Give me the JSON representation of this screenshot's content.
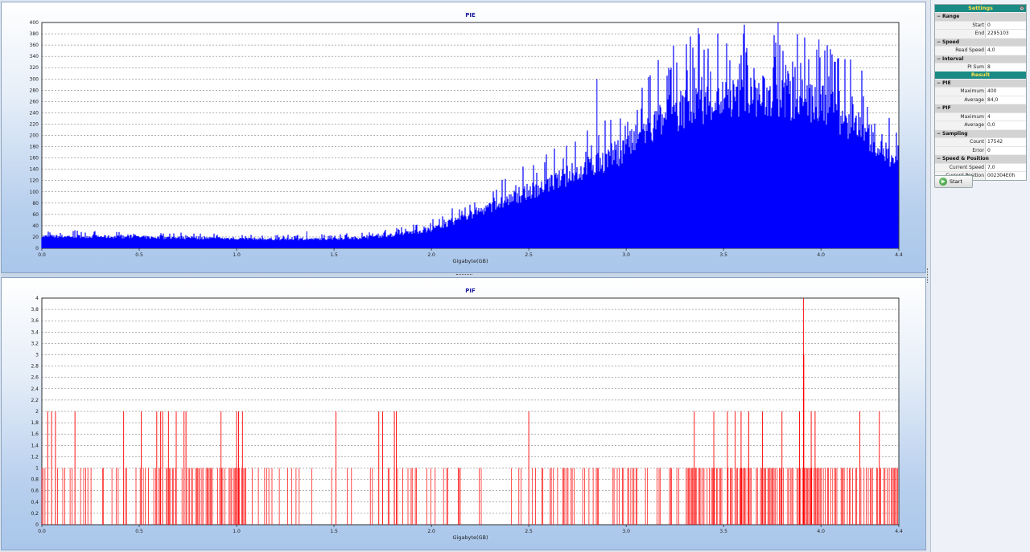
{
  "colors": {
    "pie": "#0000ff",
    "pif": "#ff0000",
    "header": "#1a8a84",
    "header_text": "#ffe24a"
  },
  "settings": {
    "header": "Settings",
    "range": {
      "label": "Range",
      "start_label": "Start",
      "start_value": "0",
      "end_label": "End",
      "end_value": "2295103"
    },
    "speed": {
      "label": "Speed",
      "read_speed_label": "Read Speed",
      "read_speed_value": "4,0"
    },
    "interval": {
      "label": "Interval",
      "pi_sum_label": "PI Sum",
      "pi_sum_value": "8"
    }
  },
  "result": {
    "header": "Result",
    "pie": {
      "label": "PIE",
      "max_label": "Maximum",
      "max_value": "400",
      "avg_label": "Average",
      "avg_value": "84,0"
    },
    "pif": {
      "label": "PIF",
      "max_label": "Maximum",
      "max_value": "4",
      "avg_label": "Average",
      "avg_value": "0,0"
    },
    "sampling": {
      "label": "Sampling",
      "count_label": "Count",
      "count_value": "17542",
      "error_label": "Error",
      "error_value": "0"
    },
    "speed_position": {
      "label": "Speed & Position",
      "current_speed_label": "Current Speed",
      "current_speed_value": "7,0",
      "current_position_label": "Current Position",
      "current_position_value": "002304E0h"
    }
  },
  "start_button": {
    "label": "Start"
  },
  "chart_data": [
    {
      "type": "bar",
      "title": "PIE",
      "xlabel": "Gigabyte(GB)",
      "ylabel": "",
      "xlim": [
        0,
        4.4
      ],
      "ylim": [
        0,
        400
      ],
      "grid": true,
      "x_ticks": [
        "0.0",
        "0.5",
        "1.0",
        "1.5",
        "2.0",
        "2.5",
        "3.0",
        "3.5",
        "4.0",
        "4.4"
      ],
      "y_ticks": [
        "0",
        "20",
        "40",
        "60",
        "80",
        "100",
        "120",
        "140",
        "160",
        "180",
        "200",
        "220",
        "240",
        "260",
        "280",
        "300",
        "320",
        "340",
        "360",
        "380",
        "400"
      ],
      "x": [
        0.0,
        0.2,
        0.4,
        0.6,
        0.8,
        1.0,
        1.2,
        1.4,
        1.6,
        1.8,
        2.0,
        2.1,
        2.2,
        2.3,
        2.4,
        2.5,
        2.6,
        2.7,
        2.8,
        2.9,
        3.0,
        3.1,
        3.2,
        3.3,
        3.4,
        3.5,
        3.6,
        3.7,
        3.8,
        3.9,
        4.0,
        4.1,
        4.2,
        4.3,
        4.4
      ],
      "values": [
        22,
        22,
        21,
        20,
        19,
        18,
        17,
        17,
        19,
        24,
        35,
        48,
        62,
        75,
        90,
        105,
        118,
        132,
        148,
        165,
        185,
        215,
        240,
        258,
        268,
        275,
        278,
        280,
        276,
        270,
        265,
        245,
        220,
        195,
        140
      ],
      "peaks": [
        {
          "x": 1.36,
          "y": 30
        },
        {
          "x": 2.85,
          "y": 300
        },
        {
          "x": 3.37,
          "y": 390
        },
        {
          "x": 3.42,
          "y": 335
        },
        {
          "x": 3.78,
          "y": 400
        },
        {
          "x": 3.99,
          "y": 370
        },
        {
          "x": 3.82,
          "y": 325
        }
      ]
    },
    {
      "type": "bar",
      "title": "PIF",
      "xlabel": "Gigabyte(GB)",
      "ylabel": "",
      "xlim": [
        0,
        4.4
      ],
      "ylim": [
        0,
        4
      ],
      "grid": true,
      "x_ticks": [
        "0.0",
        "0.5",
        "1.0",
        "1.5",
        "2.0",
        "2.5",
        "3.0",
        "3.5",
        "4.0",
        "4.4"
      ],
      "y_ticks": [
        "0",
        "0,2",
        "0,4",
        "0,6",
        "0,8",
        "1",
        "1,2",
        "1,4",
        "1,6",
        "1,8",
        "2",
        "2,2",
        "2,4",
        "2,6",
        "2,8",
        "3",
        "3,2",
        "3,4",
        "3,6",
        "3,8",
        "4"
      ],
      "x": [
        0.03,
        0.05,
        0.07,
        0.17,
        0.42,
        0.51,
        0.59,
        0.61,
        0.62,
        0.65,
        0.69,
        0.73,
        0.74,
        0.92,
        1.0,
        1.01,
        1.03,
        1.51,
        1.73,
        1.75,
        1.81,
        1.82,
        2.5,
        3.35,
        3.45,
        3.52,
        3.56,
        3.59,
        3.63,
        3.7,
        3.8,
        3.89,
        3.91,
        3.95,
        3.97,
        4.2,
        4.3
      ],
      "values": [
        2,
        2,
        2,
        2,
        2,
        2,
        2,
        2,
        2,
        2,
        2,
        2,
        2,
        2,
        2,
        2,
        2,
        2,
        2,
        2,
        2,
        2,
        2,
        2,
        2,
        2,
        2,
        2,
        2,
        2,
        2,
        2,
        4,
        2,
        2,
        2,
        2
      ]
    }
  ]
}
